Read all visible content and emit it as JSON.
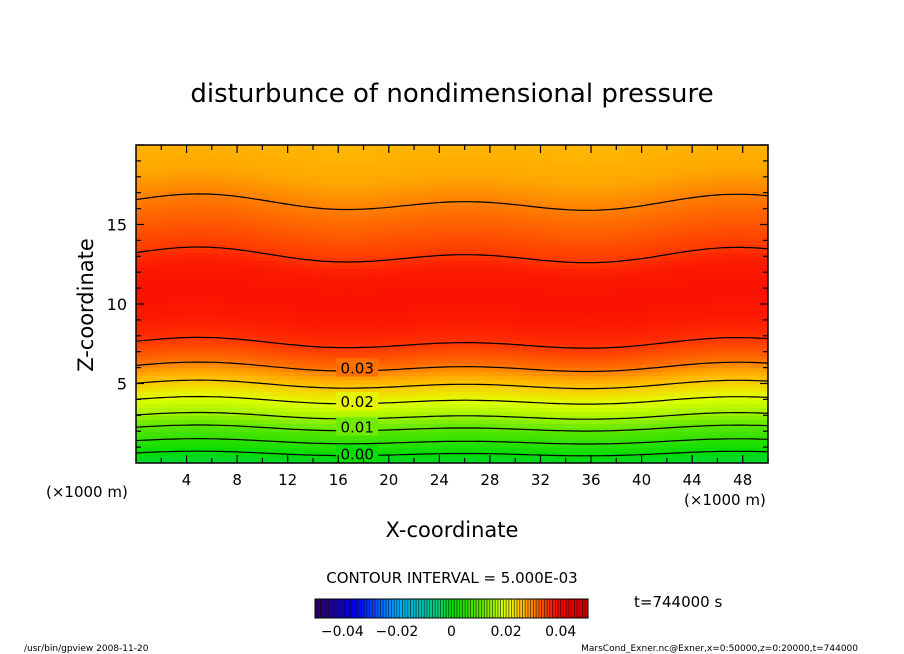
{
  "chart_data": {
    "type": "contour",
    "title": "disturbunce of nondimensional pressure",
    "xlabel": "X-coordinate",
    "ylabel": "Z-coordinate",
    "x_unit": "(×1000 m)",
    "y_unit": "(×1000 m)",
    "xlim": [
      0,
      50
    ],
    "ylim": [
      0,
      20
    ],
    "x_ticks": [
      4,
      8,
      12,
      16,
      20,
      24,
      28,
      32,
      36,
      40,
      44,
      48
    ],
    "y_ticks": [
      5,
      10,
      15
    ],
    "contour_interval_text": "CONTOUR INTERVAL = 5.000E-03",
    "time_text": "t=744000 s",
    "contour_labels": [
      {
        "text": "0.03",
        "x": 17.5,
        "z": 6.0
      },
      {
        "text": "0.02",
        "x": 17.5,
        "z": 3.9
      },
      {
        "text": "0.01",
        "x": 17.5,
        "z": 2.3
      },
      {
        "text": "0.00",
        "x": 17.5,
        "z": 0.6
      }
    ],
    "field_profile": {
      "z": [
        0,
        0.5,
        1,
        1.5,
        2,
        2.5,
        3,
        3.5,
        4,
        4.5,
        5,
        5.5,
        6,
        6.5,
        7,
        7.5,
        8,
        9,
        10,
        11,
        12,
        12.5,
        13,
        14,
        15,
        16,
        17,
        18,
        19,
        20
      ],
      "value": [
        -0.002,
        -0.0005,
        0.003,
        0.006,
        0.009,
        0.012,
        0.0155,
        0.018,
        0.0205,
        0.023,
        0.0255,
        0.0275,
        0.03,
        0.032,
        0.0335,
        0.035,
        0.036,
        0.0375,
        0.038,
        0.038,
        0.0375,
        0.0365,
        0.035,
        0.0335,
        0.032,
        0.0305,
        0.029,
        0.0275,
        0.027,
        0.0265
      ]
    },
    "colorbar": {
      "range": [
        -0.05,
        0.05
      ],
      "tick_labels": [
        "−0.04",
        "−0.02",
        "0",
        "0.02",
        "0.04"
      ],
      "tick_values": [
        -0.04,
        -0.02,
        0,
        0.02,
        0.04
      ]
    }
  },
  "footer": {
    "left": "/usr/bin/gpview   2008-11-20",
    "right": "MarsCond_Exner.nc@Exner,x=0:50000,z=0:20000,t=744000"
  }
}
